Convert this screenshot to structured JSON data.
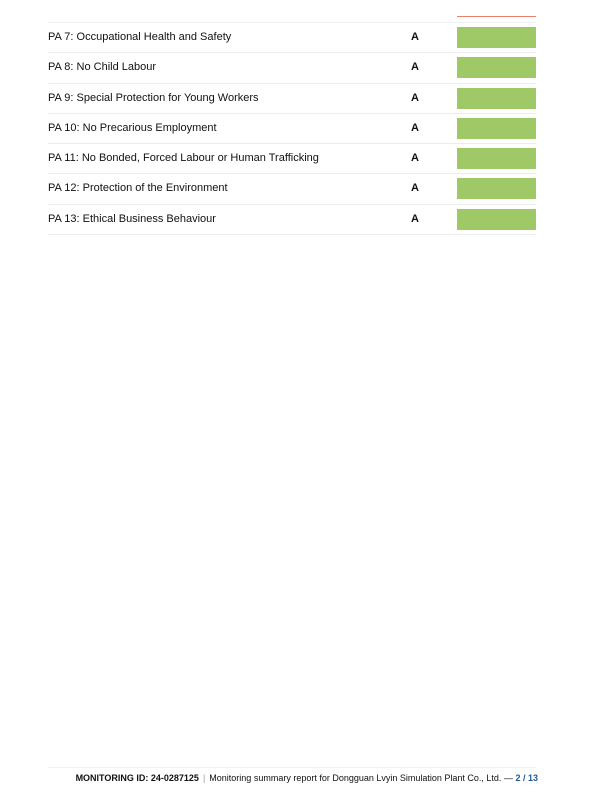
{
  "rows": [
    {
      "label": "PA 7: Occupational Health and Safety",
      "grade": "A"
    },
    {
      "label": "PA 8: No Child Labour",
      "grade": "A"
    },
    {
      "label": "PA 9: Special Protection for Young Workers",
      "grade": "A"
    },
    {
      "label": "PA 10: No Precarious Employment",
      "grade": "A"
    },
    {
      "label": "PA 11: No Bonded, Forced Labour or Human Trafficking",
      "grade": "A"
    },
    {
      "label": "PA 12: Protection of the Environment",
      "grade": "A"
    },
    {
      "label": "PA 13: Ethical Business Behaviour",
      "grade": "A"
    }
  ],
  "colors": {
    "grade_a": "#9fc966",
    "accent_line": "#e8826f",
    "page_number": "#1f5b9a"
  },
  "footer": {
    "monitoring_id": "MONITORING ID: 24-0287125",
    "separator": "|",
    "report_title": "Monitoring summary report for Dongguan Lvyin Simulation Plant Co., Ltd.",
    "dash": "—",
    "page": "2 / 13"
  }
}
